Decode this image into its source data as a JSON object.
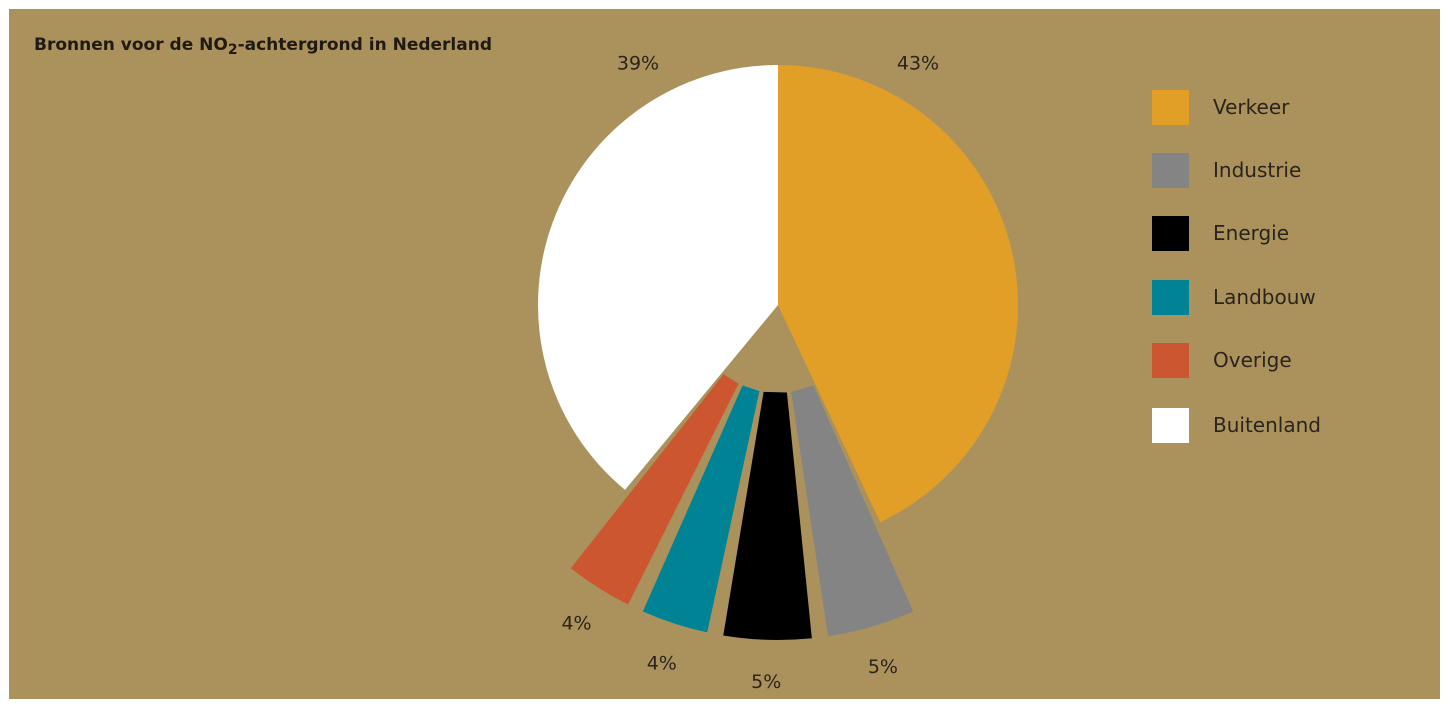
{
  "chart_data": {
    "type": "pie",
    "title": {
      "prefix": "Bronnen voor de NO",
      "subscript": "2",
      "suffix": "-achtergrond in Nederland"
    },
    "slices": [
      {
        "label": "Verkeer",
        "value": 43,
        "value_label": "43%",
        "color": "#e29f27"
      },
      {
        "label": "Industrie",
        "value": 5,
        "value_label": "5%",
        "color": "#848484"
      },
      {
        "label": "Energie",
        "value": 5,
        "value_label": "5%",
        "color": "#000000"
      },
      {
        "label": "Landbouw",
        "value": 4,
        "value_label": "4%",
        "color": "#008394"
      },
      {
        "label": "Overige",
        "value": 4,
        "value_label": "4%",
        "color": "#cc5630"
      },
      {
        "label": "Buitenland",
        "value": 39,
        "value_label": "39%",
        "color": "#ffffff"
      }
    ],
    "start_direction": "top",
    "direction": "clockwise",
    "exploded_slices": [
      "Industrie",
      "Energie",
      "Landbouw",
      "Overige"
    ],
    "legend_position": "right"
  },
  "colors": {
    "panel_background": "#ab925c",
    "text": "#2a241c"
  }
}
